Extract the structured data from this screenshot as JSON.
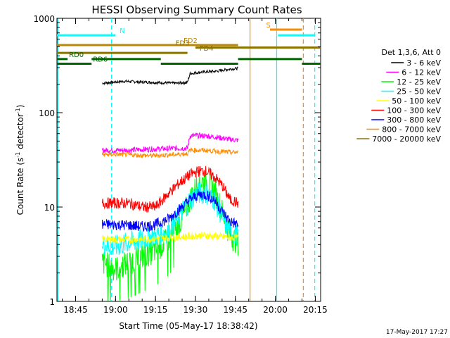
{
  "chart_data": {
    "type": "line",
    "title": "HESSI Observing Summary Count Rates",
    "xlabel": "Start Time (05-May-17 18:38:42)",
    "ylabel_main": "Count Rate (s",
    "ylabel_sup1": "-1",
    "ylabel_mid": " detector",
    "ylabel_sup2": "-1",
    "ylabel_end": ")",
    "y_scale": "log",
    "ylim": [
      1,
      1000
    ],
    "xlim_minutes_after_1838": [
      0,
      99
    ],
    "x_ticks": [
      {
        "label": "18:45",
        "min": 7
      },
      {
        "label": "19:00",
        "min": 22
      },
      {
        "label": "19:15",
        "min": 37
      },
      {
        "label": "19:30",
        "min": 52
      },
      {
        "label": "19:45",
        "min": 67
      },
      {
        "label": "20:00",
        "min": 82
      },
      {
        "label": "20:15",
        "min": 97
      }
    ],
    "y_ticks": [
      {
        "label": "1",
        "value": 1
      },
      {
        "label": "10",
        "value": 10
      },
      {
        "label": "100",
        "value": 100
      },
      {
        "label": "1000",
        "value": 1000
      }
    ],
    "legend_header": "Det 1,3,6, Att 0",
    "legend_placement": "right",
    "series": [
      {
        "name": "3 - 6 keV",
        "color": "#000000",
        "points": [
          [
            17,
            205
          ],
          [
            25,
            215
          ],
          [
            35,
            210
          ],
          [
            45,
            205
          ],
          [
            49,
            210
          ],
          [
            50,
            260
          ],
          [
            55,
            270
          ],
          [
            60,
            275
          ],
          [
            65,
            290
          ],
          [
            68,
            295
          ]
        ]
      },
      {
        "name": "6 - 12 keV",
        "color": "#ff00ff",
        "points": [
          [
            17,
            40
          ],
          [
            25,
            40
          ],
          [
            35,
            41
          ],
          [
            45,
            42
          ],
          [
            49,
            42
          ],
          [
            50,
            57
          ],
          [
            55,
            57
          ],
          [
            60,
            55
          ],
          [
            65,
            52
          ],
          [
            68,
            51
          ]
        ]
      },
      {
        "name": "12 - 25 keV",
        "color": "#00ff00",
        "points": [
          [
            17,
            2.6
          ],
          [
            22,
            2.2
          ],
          [
            27,
            2.6
          ],
          [
            32,
            3.0
          ],
          [
            37,
            3.5
          ],
          [
            42,
            4.5
          ],
          [
            47,
            7.5
          ],
          [
            50,
            12
          ],
          [
            53,
            18
          ],
          [
            56,
            19
          ],
          [
            59,
            15
          ],
          [
            62,
            9
          ],
          [
            65,
            5
          ],
          [
            68,
            4.2
          ]
        ]
      },
      {
        "name": "25 - 50 keV",
        "color": "#00ffff",
        "points": [
          [
            17,
            4.0
          ],
          [
            22,
            3.8
          ],
          [
            27,
            4.2
          ],
          [
            32,
            4.5
          ],
          [
            37,
            5.0
          ],
          [
            42,
            5.5
          ],
          [
            47,
            9
          ],
          [
            50,
            12
          ],
          [
            53,
            14
          ],
          [
            56,
            14
          ],
          [
            59,
            12
          ],
          [
            62,
            8
          ],
          [
            65,
            5.5
          ],
          [
            68,
            5.0
          ]
        ]
      },
      {
        "name": "50 - 100 keV",
        "color": "#ffff00",
        "points": [
          [
            17,
            4.6
          ],
          [
            25,
            4.5
          ],
          [
            35,
            4.6
          ],
          [
            45,
            4.8
          ],
          [
            55,
            5.0
          ],
          [
            65,
            4.8
          ],
          [
            68,
            4.7
          ]
        ]
      },
      {
        "name": "100 - 300 keV",
        "color": "#ff0000",
        "points": [
          [
            17,
            11
          ],
          [
            22,
            11
          ],
          [
            27,
            11
          ],
          [
            32,
            10
          ],
          [
            37,
            10
          ],
          [
            42,
            14
          ],
          [
            46,
            18
          ],
          [
            50,
            22
          ],
          [
            53,
            24
          ],
          [
            56,
            24
          ],
          [
            59,
            21
          ],
          [
            62,
            17
          ],
          [
            65,
            12
          ],
          [
            68,
            11
          ]
        ]
      },
      {
        "name": "300 - 800 keV",
        "color": "#0000ff",
        "points": [
          [
            17,
            6.5
          ],
          [
            22,
            6.5
          ],
          [
            27,
            6.4
          ],
          [
            32,
            6.2
          ],
          [
            37,
            6.5
          ],
          [
            42,
            7.5
          ],
          [
            46,
            9.5
          ],
          [
            50,
            12
          ],
          [
            53,
            13.5
          ],
          [
            56,
            13.5
          ],
          [
            59,
            12
          ],
          [
            62,
            9
          ],
          [
            65,
            7
          ],
          [
            68,
            6.5
          ]
        ]
      },
      {
        "name": "800 - 7000 keV",
        "color": "#ff8c00",
        "points": [
          [
            17,
            36
          ],
          [
            25,
            36
          ],
          [
            35,
            35
          ],
          [
            45,
            36
          ],
          [
            49,
            37
          ],
          [
            50,
            40
          ],
          [
            55,
            40
          ],
          [
            60,
            39
          ],
          [
            65,
            38
          ],
          [
            68,
            38
          ]
        ]
      },
      {
        "name": "7000 - 20000 keV",
        "color": "#8b7300",
        "points": []
      }
    ],
    "state_bars": [
      {
        "label": "N",
        "color": "#00ffff",
        "y": 660,
        "segments": [
          [
            0,
            22
          ]
        ],
        "label_at": 23
      },
      {
        "label": "S",
        "color": "#ff8c00",
        "y": 760,
        "segments": [
          [
            80,
            92
          ]
        ],
        "label_at": 78
      },
      {
        "label": "",
        "color": "#00ffff",
        "y": 660,
        "segments": [
          [
            83,
            97
          ]
        ],
        "label_at": 0
      },
      {
        "label": "FD2",
        "color": "#b8860b",
        "y": 520,
        "segments": [
          [
            0,
            68
          ]
        ],
        "label_at": 47
      },
      {
        "label": "FD3",
        "color": "#8b7300",
        "y": 490,
        "segments": [
          [
            52,
            99
          ]
        ],
        "label_at": 44
      },
      {
        "label": "FD4",
        "color": "#8b7300",
        "y": 430,
        "segments": [
          [
            0,
            49
          ]
        ],
        "label_at": 53
      },
      {
        "label": "RD0",
        "color": "#006400",
        "y": 370,
        "segments": [
          [
            0,
            4
          ],
          [
            13,
            39
          ],
          [
            68,
            92
          ]
        ],
        "label_at": 4
      },
      {
        "label": "RD6",
        "color": "#006400",
        "y": 330,
        "segments": [
          [
            0,
            13
          ],
          [
            39,
            68
          ],
          [
            92,
            99
          ]
        ],
        "label_at": 13
      }
    ],
    "vertical_lines": [
      {
        "min": 0.3,
        "color": "#00ffff",
        "dash": false
      },
      {
        "min": 20.5,
        "color": "#00ffff",
        "dash": true
      },
      {
        "min": 72.5,
        "color": "#ff8c00",
        "dash": false
      },
      {
        "min": 82.5,
        "color": "#00ffff",
        "dash": false
      },
      {
        "min": 92.5,
        "color": "#ff8c00",
        "dash": true
      },
      {
        "min": 96.8,
        "color": "#00ffff",
        "dash": true
      }
    ]
  },
  "timestamp": "17-May-2017 17:27"
}
